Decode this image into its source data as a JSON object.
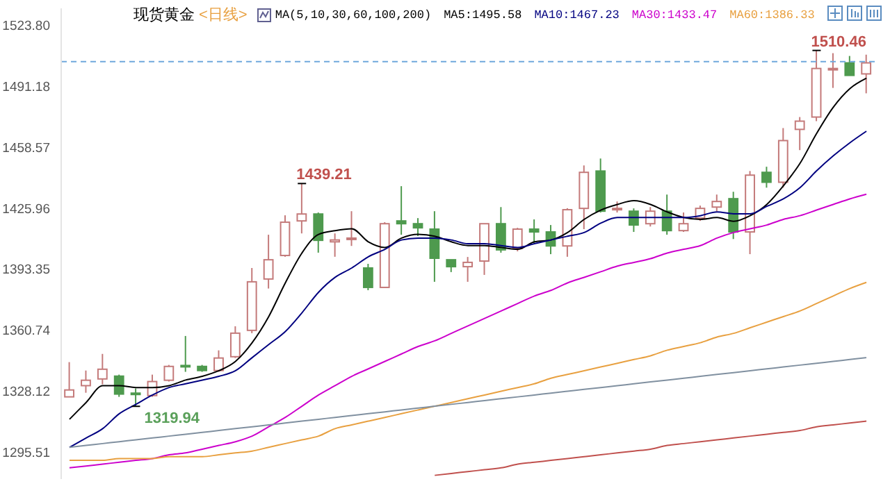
{
  "chart_data": {
    "type": "candlestick",
    "title": "现货黄金",
    "subtitle": "<日线>",
    "legend_title": "MA(5,10,30,60,100,200)",
    "legend": "top",
    "tick_labels": "y",
    "categories": [
      null,
      null,
      null,
      null,
      null,
      null,
      null,
      null,
      null,
      null,
      null,
      null,
      null,
      null,
      null,
      null,
      null,
      null,
      null,
      null,
      null,
      null,
      null,
      null,
      null,
      null,
      null,
      null,
      null,
      null,
      null,
      null,
      null,
      null,
      null,
      null,
      null,
      null,
      null,
      null,
      null,
      null,
      null,
      null,
      null,
      null,
      null,
      null,
      null
    ],
    "ohlc": [
      [
        1325.0,
        1343.6,
        1325.0,
        1328.7
      ],
      [
        1331.0,
        1339.1,
        1327.2,
        1333.9
      ],
      [
        1334.6,
        1348.0,
        1331.7,
        1339.8
      ],
      [
        1336.1,
        1336.9,
        1325.0,
        1326.5
      ],
      [
        1327.0,
        1329.5,
        1319.94,
        1326.5
      ],
      [
        1325.7,
        1336.9,
        1325.0,
        1333.2
      ],
      [
        1333.9,
        1342.1,
        1333.2,
        1341.3
      ],
      [
        1341.8,
        1357.6,
        1338.4,
        1341.3
      ],
      [
        1341.3,
        1342.1,
        1338.4,
        1339.1
      ],
      [
        1339.1,
        1349.9,
        1338.4,
        1345.8
      ],
      [
        1346.5,
        1362.8,
        1345.8,
        1359.1
      ],
      [
        1360.6,
        1394.0,
        1359.1,
        1386.6
      ],
      [
        1388.1,
        1411.8,
        1383.0,
        1398.4
      ],
      [
        1400.7,
        1422.2,
        1400.0,
        1418.5
      ],
      [
        1419.2,
        1439.21,
        1412.5,
        1422.9
      ],
      [
        1422.9,
        1423.7,
        1402.2,
        1408.8
      ],
      [
        1408.0,
        1412.5,
        1400.0,
        1409.0
      ],
      [
        1409.5,
        1424.4,
        1405.8,
        1410.0
      ],
      [
        1394.0,
        1396.2,
        1382.1,
        1383.6
      ],
      [
        1383.6,
        1418.5,
        1383.6,
        1417.7
      ],
      [
        1419.2,
        1437.8,
        1411.8,
        1417.7
      ],
      [
        1417.7,
        1420.7,
        1411.1,
        1415.5
      ],
      [
        1414.8,
        1424.4,
        1386.6,
        1399.2
      ],
      [
        1398.4,
        1398.4,
        1391.8,
        1394.7
      ],
      [
        1394.7,
        1399.9,
        1386.6,
        1397.0
      ],
      [
        1397.7,
        1417.7,
        1390.3,
        1417.7
      ],
      [
        1417.7,
        1426.6,
        1402.2,
        1403.7
      ],
      [
        1404.4,
        1415.5,
        1402.9,
        1414.8
      ],
      [
        1414.8,
        1420.0,
        1407.4,
        1413.3
      ],
      [
        1413.3,
        1417.0,
        1401.4,
        1405.8
      ],
      [
        1405.8,
        1426.0,
        1400.0,
        1425.2
      ],
      [
        1425.9,
        1448.9,
        1414.8,
        1445.2
      ],
      [
        1445.9,
        1452.6,
        1423.7,
        1424.4
      ],
      [
        1425.2,
        1429.6,
        1423.7,
        1425.9
      ],
      [
        1424.4,
        1425.9,
        1413.3,
        1417.0
      ],
      [
        1417.7,
        1426.6,
        1416.2,
        1424.4
      ],
      [
        1424.4,
        1433.3,
        1411.8,
        1414.0
      ],
      [
        1414.0,
        1423.7,
        1413.3,
        1417.7
      ],
      [
        1420.7,
        1427.4,
        1419.2,
        1425.9
      ],
      [
        1426.6,
        1433.3,
        1424.4,
        1429.6
      ],
      [
        1431.1,
        1434.8,
        1409.5,
        1413.3
      ],
      [
        1413.3,
        1445.9,
        1401.4,
        1443.7
      ],
      [
        1445.2,
        1448.2,
        1437.0,
        1439.9
      ],
      [
        1439.9,
        1468.9,
        1437.0,
        1462.2
      ],
      [
        1468.2,
        1474.8,
        1457.1,
        1472.6
      ],
      [
        1474.8,
        1510.46,
        1472.6,
        1500.8
      ],
      [
        1500.1,
        1509.0,
        1490.4,
        1500.8
      ],
      [
        1503.8,
        1507.5,
        1497.1,
        1497.1
      ],
      [
        1497.9,
        1508.2,
        1487.5,
        1503.8
      ]
    ],
    "colors": [
      "#c47a7a",
      "#c47a7a",
      "#c47a7a",
      "#4e9a4e",
      "#4e9a4e",
      "#c47a7a",
      "#c47a7a",
      "#4e9a4e",
      "#4e9a4e",
      "#c47a7a",
      "#c47a7a",
      "#c47a7a",
      "#c47a7a",
      "#c47a7a",
      "#c47a7a",
      "#4e9a4e",
      "#c47a7a",
      "#c47a7a",
      "#4e9a4e",
      "#c47a7a",
      "#4e9a4e",
      "#4e9a4e",
      "#4e9a4e",
      "#4e9a4e",
      "#c47a7a",
      "#c47a7a",
      "#4e9a4e",
      "#c47a7a",
      "#4e9a4e",
      "#4e9a4e",
      "#c47a7a",
      "#c47a7a",
      "#4e9a4e",
      "#c47a7a",
      "#4e9a4e",
      "#c47a7a",
      "#4e9a4e",
      "#c47a7a",
      "#c47a7a",
      "#c47a7a",
      "#4e9a4e",
      "#c47a7a",
      "#4e9a4e",
      "#c47a7a",
      "#c47a7a",
      "#c47a7a",
      "#c47a7a",
      "#4e9a4e",
      "#c47a7a"
    ],
    "series": [
      {
        "type": "line",
        "name": "MA5:1495.58",
        "color": "#000000",
        "values": [
          1313,
          1322,
          1331,
          1331,
          1330,
          1330,
          1331,
          1334,
          1336,
          1339,
          1344,
          1354,
          1368,
          1386,
          1402,
          1412,
          1414,
          1415,
          1408,
          1405,
          1410,
          1412,
          1411,
          1408,
          1406,
          1406,
          1405,
          1404,
          1408,
          1409,
          1413,
          1420,
          1425,
          1428,
          1430,
          1428,
          1424,
          1421,
          1420,
          1421,
          1419,
          1422,
          1428,
          1438,
          1450,
          1466,
          1480,
          1490,
          1495.6
        ]
      },
      {
        "type": "line",
        "name": "MA10:1467.23",
        "color": "#000080",
        "values": [
          1298,
          1303,
          1308,
          1316,
          1321,
          1326,
          1330,
          1332,
          1334,
          1336,
          1339,
          1346,
          1353,
          1360,
          1370,
          1381,
          1389,
          1394,
          1400,
          1404,
          1409,
          1410,
          1410,
          1409,
          1407,
          1407,
          1406,
          1405,
          1407,
          1409,
          1411,
          1413,
          1418,
          1421,
          1421,
          1421,
          1421,
          1421,
          1422,
          1424,
          1423,
          1423,
          1427,
          1431,
          1437,
          1446,
          1454,
          1461,
          1467.2
        ]
      },
      {
        "type": "line",
        "name": "MA30:1433.47",
        "color": "#cc00cc",
        "values": [
          1287,
          1288,
          1289,
          1290,
          1291,
          1292,
          1294,
          1295,
          1297,
          1299,
          1301,
          1304,
          1309,
          1314,
          1320,
          1326,
          1331,
          1336,
          1340,
          1344,
          1348,
          1352,
          1355,
          1359,
          1363,
          1367,
          1371,
          1375,
          1379,
          1382,
          1386,
          1389,
          1392,
          1395,
          1397,
          1399,
          1402,
          1404,
          1406,
          1410,
          1413,
          1415,
          1417,
          1420,
          1422,
          1425,
          1428,
          1431,
          1433.5
        ]
      },
      {
        "type": "line",
        "name": "MA60:1386.33",
        "color": "#e8a040",
        "values": [
          1291,
          1291,
          1291,
          1292,
          1292,
          1292,
          1293,
          1293,
          1293,
          1294,
          1295,
          1296,
          1298,
          1300,
          1302,
          1304,
          1308,
          1310,
          1312,
          1314,
          1316,
          1318,
          1320,
          1322,
          1324,
          1326,
          1328,
          1330,
          1332,
          1335,
          1337,
          1339,
          1341,
          1343,
          1345,
          1347,
          1350,
          1352,
          1354,
          1357,
          1359,
          1362,
          1365,
          1368,
          1371,
          1375,
          1379,
          1383,
          1386.3
        ]
      },
      {
        "type": "line",
        "color": "#8090a0",
        "values": [
          1298,
          1299,
          1300,
          1301,
          1302,
          1303,
          1304,
          1305,
          1306,
          1307,
          1308,
          1309,
          1310,
          1311,
          1312,
          1313,
          1314,
          1315,
          1316,
          1317,
          1318,
          1319,
          1320,
          1321,
          1322,
          1323,
          1324,
          1325,
          1326,
          1327,
          1328,
          1329,
          1330,
          1331,
          1332,
          1333,
          1334,
          1335,
          1336,
          1337,
          1338,
          1339,
          1340,
          1341,
          1342,
          1343,
          1344,
          1345,
          1346
        ]
      },
      {
        "type": "line",
        "color": "#c0504d",
        "values": [
          null,
          null,
          null,
          null,
          null,
          null,
          null,
          null,
          null,
          null,
          null,
          null,
          null,
          null,
          null,
          null,
          null,
          null,
          null,
          null,
          null,
          null,
          1283,
          1284,
          1285,
          1286,
          1287,
          1289,
          1290,
          1291,
          1292,
          1293,
          1294,
          1295,
          1296,
          1297,
          1299,
          1300,
          1301,
          1302,
          1303,
          1304,
          1305,
          1306,
          1307,
          1309,
          1310,
          1311,
          1312
        ]
      }
    ],
    "ylim": [
      1281,
      1533
    ],
    "yticks": [
      {
        "value": 1523.8,
        "label": "1523.80"
      },
      1491.18,
      1458.57,
      1425.96,
      1393.35,
      1360.74,
      1328.12,
      1295.51
    ],
    "ref_lines": [
      {
        "axis": "y",
        "value": 1504.5,
        "color": "#6fa8dc",
        "line_style": "dashed"
      }
    ],
    "annotations": [
      "1439.21",
      "1319.94",
      "1510.46"
    ]
  }
}
